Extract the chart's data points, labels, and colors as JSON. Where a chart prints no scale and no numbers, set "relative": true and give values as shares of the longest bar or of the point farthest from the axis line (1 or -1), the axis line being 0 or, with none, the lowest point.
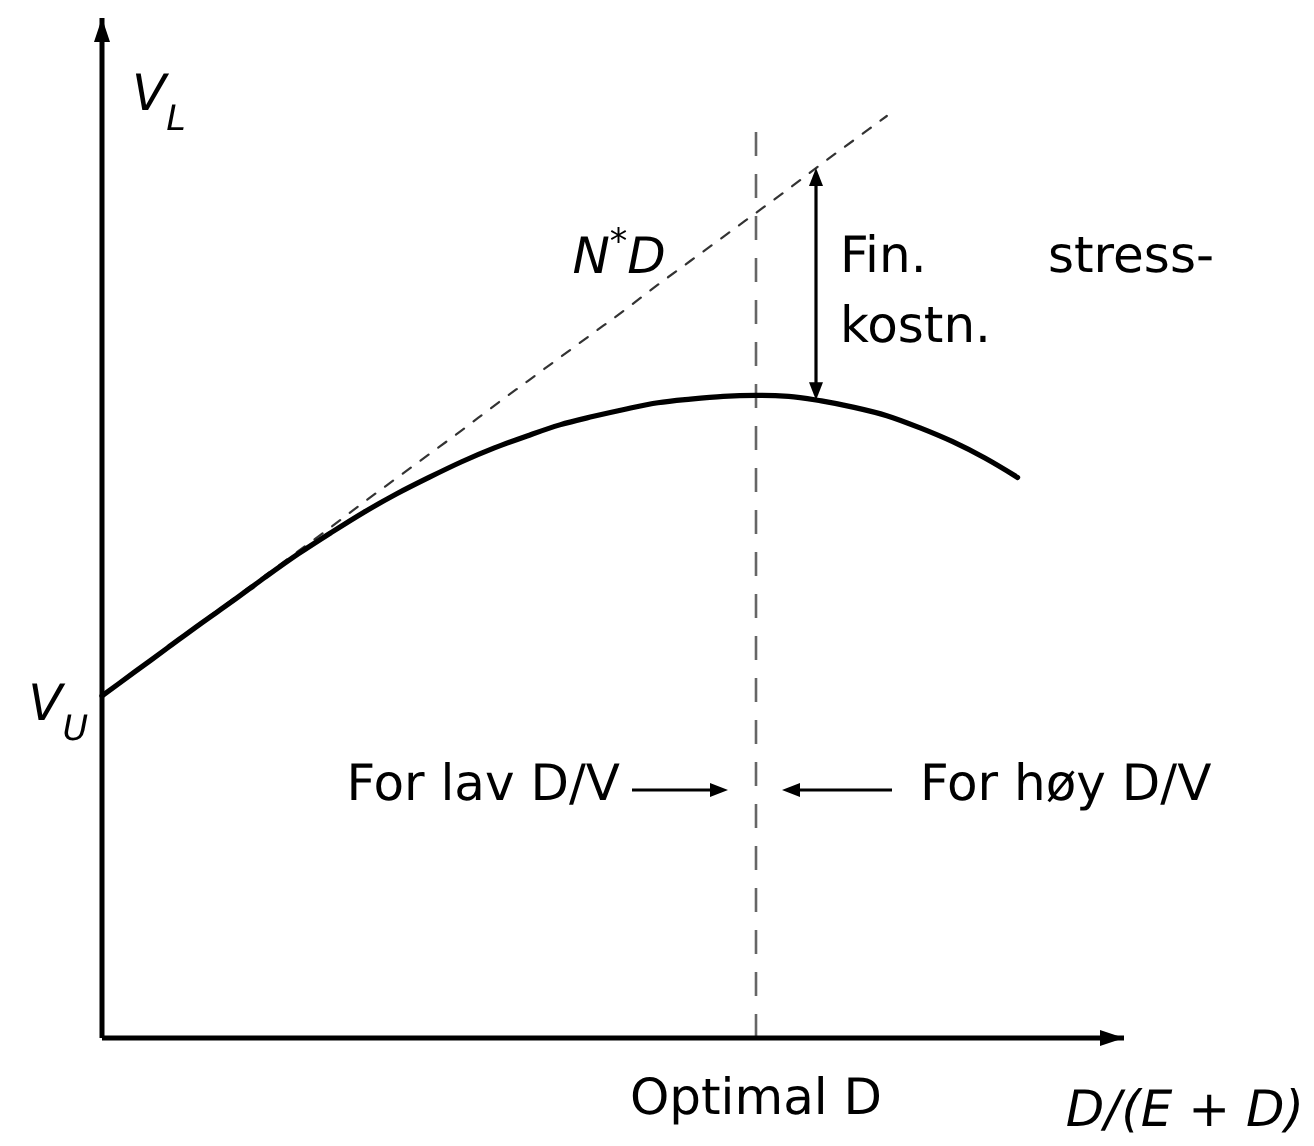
{
  "chart_data": {
    "type": "line",
    "relative": true,
    "xlabel": "D/(E + D)",
    "ylabel": "V$_{L}$",
    "categories": [
      null,
      null,
      null,
      null,
      null,
      null,
      null,
      null,
      null,
      null,
      null,
      null,
      null,
      null,
      null,
      null,
      null,
      null,
      null,
      null,
      null,
      null,
      null,
      null,
      null,
      null,
      null,
      null,
      null
    ],
    "series": [
      {
        "name": "N$^{*}$D",
        "color": "#333333",
        "line_style": "dashed",
        "values": [
          0.371,
          0.397,
          0.423,
          0.45,
          0.476,
          0.502,
          0.528,
          0.554,
          0.581,
          0.607,
          0.633,
          0.659,
          0.686,
          0.712,
          0.738,
          0.764,
          0.79,
          0.817,
          0.843,
          0.869,
          0.895,
          0.921,
          0.948,
          0.974,
          1.0,
          null,
          null,
          null,
          null
        ]
      },
      {
        "color": "#000000",
        "line_style": "solid",
        "values": [
          0.371,
          0.397,
          0.423,
          0.449,
          0.474,
          0.5,
          0.525,
          0.548,
          0.57,
          0.59,
          0.608,
          0.625,
          0.64,
          0.653,
          0.665,
          0.674,
          0.682,
          0.689,
          0.693,
          0.696,
          0.697,
          0.696,
          0.691,
          0.684,
          0.675,
          0.662,
          0.647,
          0.629,
          0.608
        ]
      }
    ],
    "annotations": [
      "V$_{U}$",
      "For lav D/V",
      "For høy D/V",
      "Fin. stress-kostn.",
      "Optimal D"
    ]
  }
}
